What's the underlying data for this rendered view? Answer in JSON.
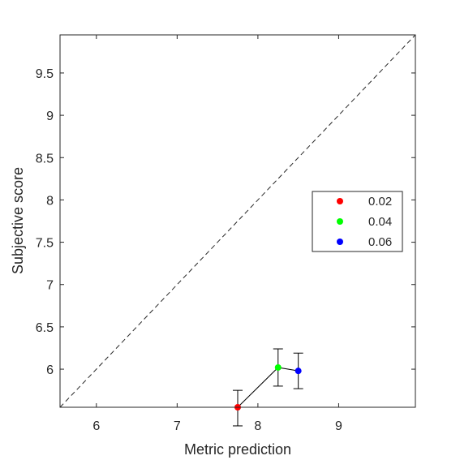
{
  "chart_data": {
    "type": "scatter",
    "title": "",
    "xlabel": "Metric prediction",
    "ylabel": "Subjective score",
    "xlim": [
      5.55,
      9.95
    ],
    "ylim": [
      5.55,
      9.95
    ],
    "xticks": [
      6,
      7,
      8,
      9
    ],
    "yticks": [
      6,
      6.5,
      7,
      7.5,
      8,
      8.5,
      9,
      9.5
    ],
    "xtick_labels": [
      "6",
      "7",
      "8",
      "9"
    ],
    "ytick_labels": [
      "6",
      "6.5",
      "7",
      "7.5",
      "8",
      "8.5",
      "9",
      "9.5"
    ],
    "grid": false,
    "identity_line": true,
    "legend_position": "right",
    "series": [
      {
        "name": "0.02",
        "color": "#ff0000",
        "x": 7.75,
        "y": 5.55,
        "err_low": 5.33,
        "err_high": 5.75
      },
      {
        "name": "0.04",
        "color": "#00ff00",
        "x": 8.25,
        "y": 6.02,
        "err_low": 5.8,
        "err_high": 6.24
      },
      {
        "name": "0.06",
        "color": "#0000ff",
        "x": 8.5,
        "y": 5.98,
        "err_low": 5.77,
        "err_high": 6.19
      }
    ],
    "connecting_line": true
  }
}
